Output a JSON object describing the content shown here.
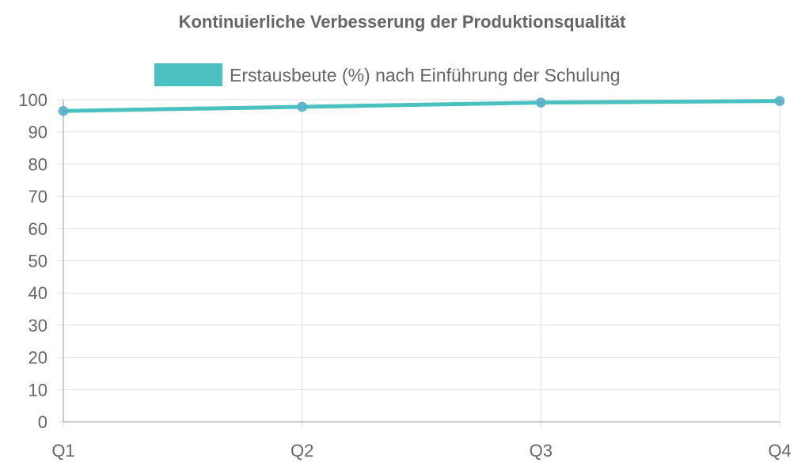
{
  "chart_data": {
    "type": "line",
    "title": "Kontinuierliche Verbesserung der Produktionsqualität",
    "categories": [
      "Q1",
      "Q2",
      "Q3",
      "Q4"
    ],
    "series": [
      {
        "name": "Erstausbeute (%) nach Einführung der Schulung",
        "values": [
          96.5,
          97.8,
          99.1,
          99.6
        ],
        "color": "#4bc0c0",
        "point_color": "#5aaec8"
      }
    ],
    "xlabel": "",
    "ylabel": "",
    "ylim": [
      0,
      100
    ],
    "yticks": [
      "0",
      "10",
      "20",
      "30",
      "40",
      "50",
      "60",
      "70",
      "80",
      "90",
      "100"
    ],
    "grid": true,
    "legend_position": "top"
  }
}
